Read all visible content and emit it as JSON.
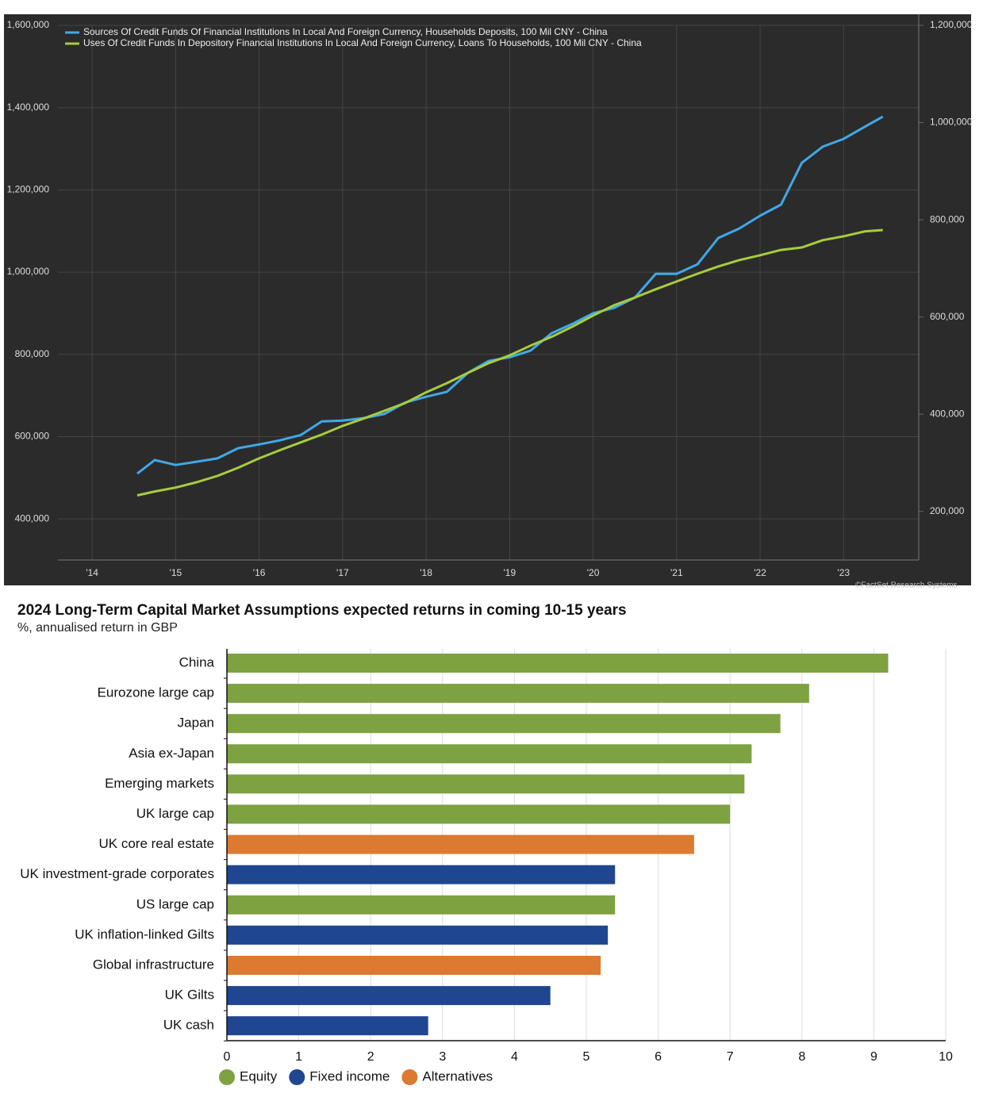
{
  "chart_data": [
    {
      "type": "line",
      "source": "©FactSet Research Systems",
      "x": [
        2014.54,
        2014.75,
        2015.0,
        2015.25,
        2015.5,
        2015.75,
        2016.0,
        2016.25,
        2016.5,
        2016.75,
        2017.0,
        2017.25,
        2017.5,
        2017.75,
        2018.0,
        2018.25,
        2018.5,
        2018.75,
        2019.0,
        2019.25,
        2019.5,
        2019.75,
        2020.0,
        2020.25,
        2020.5,
        2020.75,
        2021.0,
        2021.25,
        2021.5,
        2021.75,
        2022.0,
        2022.25,
        2022.5,
        2022.75,
        2023.0,
        2023.25,
        2023.47
      ],
      "series": [
        {
          "name": "Sources Of Credit Funds Of Financial Institutions In Local And Foreign Currency, Households Deposits, 100 Mil CNY - China",
          "color": "#3fa9e8",
          "axis": "y",
          "values": [
            510000,
            543000,
            531000,
            539000,
            547000,
            572000,
            581000,
            591000,
            604000,
            637000,
            639000,
            645000,
            655000,
            683000,
            697000,
            709000,
            755000,
            784000,
            793000,
            809000,
            851000,
            874000,
            900000,
            913000,
            938000,
            996000,
            996000,
            1019000,
            1083000,
            1106000,
            1137000,
            1164000,
            1266000,
            1305000,
            1324000,
            1353000,
            1378000
          ]
        },
        {
          "name": "Uses Of Credit Funds In Depository Financial Institutions In Local And Foreign Currency, Loans To Households, 100 Mil CNY - China",
          "color": "#a8cc3c",
          "axis": "y2",
          "values": [
            233000,
            241000,
            249000,
            260000,
            273000,
            290000,
            309000,
            326000,
            342000,
            358000,
            376000,
            391000,
            407000,
            423000,
            445000,
            464000,
            485000,
            505000,
            521000,
            541000,
            559000,
            580000,
            603000,
            624000,
            640000,
            657000,
            673000,
            689000,
            704000,
            717000,
            727000,
            738000,
            743000,
            758000,
            766000,
            776000,
            779000
          ]
        }
      ],
      "xlim": [
        2013.59,
        2023.9
      ],
      "xticks": [
        {
          "value": 2014,
          "label": "'14"
        },
        {
          "value": 2015,
          "label": "'15"
        },
        {
          "value": 2016,
          "label": "'16"
        },
        {
          "value": 2017,
          "label": "'17"
        },
        {
          "value": 2018,
          "label": "'18"
        },
        {
          "value": 2019,
          "label": "'19"
        },
        {
          "value": 2020,
          "label": "'20"
        },
        {
          "value": 2021,
          "label": "'21"
        },
        {
          "value": 2022,
          "label": "'22"
        },
        {
          "value": 2023,
          "label": "'23"
        }
      ],
      "ylim": [
        300000,
        1600000
      ],
      "yticks": [
        {
          "value": 400000,
          "label": "400,000"
        },
        {
          "value": 600000,
          "label": "600,000"
        },
        {
          "value": 800000,
          "label": "800,000"
        },
        {
          "value": 1000000,
          "label": "1,000,000"
        },
        {
          "value": 1200000,
          "label": "1,200,000"
        },
        {
          "value": 1400000,
          "label": "1,400,000"
        },
        {
          "value": 1600000,
          "label": "1,600,000"
        }
      ],
      "y2lim": [
        100000,
        1200000
      ],
      "y2ticks": [
        {
          "value": 200000,
          "label": "200,000"
        },
        {
          "value": 400000,
          "label": "400,000"
        },
        {
          "value": 600000,
          "label": "600,000"
        },
        {
          "value": 800000,
          "label": "800,000"
        },
        {
          "value": 1000000,
          "label": "1,000,000"
        },
        {
          "value": 1200000,
          "label": "1,200,000"
        }
      ],
      "grid": true,
      "legend": "top-left"
    },
    {
      "type": "hbar",
      "title": "2024 Long-Term Capital Market Assumptions expected returns in coming 10-15 years",
      "subtitle": "%, annualised return in GBP",
      "categories": [
        "China",
        "Eurozone large cap",
        "Japan",
        "Asia ex-Japan",
        "Emerging markets",
        "UK large cap",
        "UK core real estate",
        "UK investment-grade corporates",
        "US large cap",
        "UK inflation-linked Gilts",
        "Global infrastructure",
        "UK Gilts",
        "UK cash"
      ],
      "values": [
        9.2,
        8.1,
        7.7,
        7.3,
        7.2,
        7.0,
        6.5,
        5.4,
        5.4,
        5.3,
        5.2,
        4.5,
        2.8
      ],
      "colors": [
        "#7ea142",
        "#7ea142",
        "#7ea142",
        "#7ea142",
        "#7ea142",
        "#7ea142",
        "#dd7a31",
        "#1f4690",
        "#7ea142",
        "#1f4690",
        "#dd7a31",
        "#1f4690",
        "#1f4690"
      ],
      "legend": [
        {
          "name": "Equity",
          "color": "#7ea142"
        },
        {
          "name": "Fixed income",
          "color": "#1f4690"
        },
        {
          "name": "Alternatives",
          "color": "#dd7a31"
        }
      ],
      "xlim": [
        0,
        10
      ],
      "xticks": [
        0,
        1,
        2,
        3,
        4,
        5,
        6,
        7,
        8,
        9,
        10
      ],
      "grid": true
    }
  ]
}
